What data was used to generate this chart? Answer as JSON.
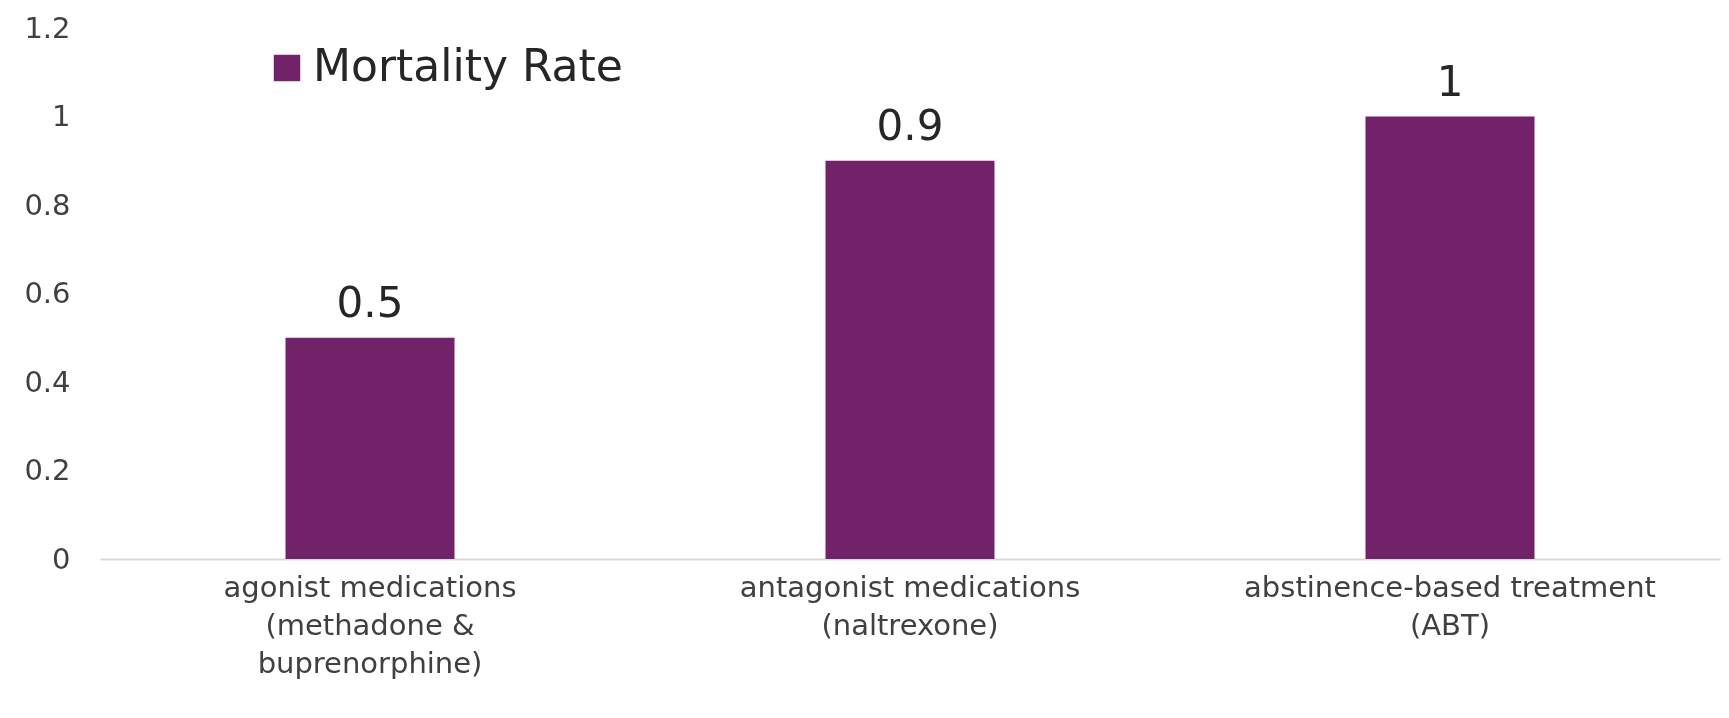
{
  "chart_data": {
    "type": "bar",
    "categories": [
      "agonist medications (methadone & buprenorphine)",
      "antagonist medications (naltrexone)",
      "abstinence-based treatment (ABT)"
    ],
    "series": [
      {
        "name": "Mortality Rate",
        "color": "#722268",
        "values": [
          0.5,
          0.9,
          1
        ]
      }
    ],
    "ylim": [
      0,
      1.2
    ],
    "yticks": [
      0,
      0.2,
      0.4,
      0.6,
      0.8,
      1,
      1.2
    ],
    "data_labels": true,
    "grid": false,
    "legend": "top left"
  }
}
